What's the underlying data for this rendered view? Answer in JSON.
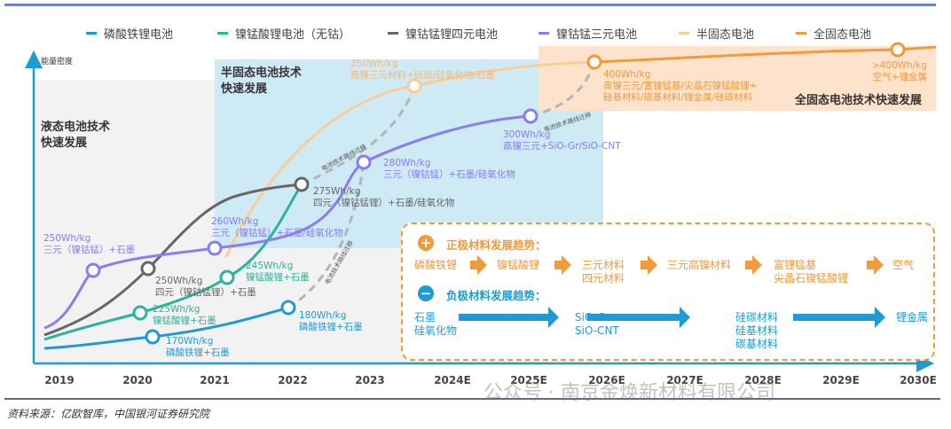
{
  "legend": [
    {
      "label": "磷酸铁锂电池",
      "color": "#1f9bd1"
    },
    {
      "label": "镍锰酸锂电池（无钴）",
      "color": "#2bb39b"
    },
    {
      "label": "镍钴锰锂四元电池",
      "color": "#666666"
    },
    {
      "label": "镍钴锰三元电池",
      "color": "#8b7cf0"
    },
    {
      "label": "半固态电池",
      "color": "#f9cd9a"
    },
    {
      "label": "全固态电池",
      "color": "#f39a3a"
    }
  ],
  "y_axis_label": "能量密度",
  "x_axis_years": [
    "2019",
    "2020",
    "2021",
    "2022",
    "2023",
    "2024E",
    "2025E",
    "2026E",
    "2027E",
    "2028E",
    "2029E",
    "2030E"
  ],
  "regions": {
    "liquid": "液态电池技术\n快速发展",
    "semi_solid": "半固态电池技术\n快速发展",
    "all_solid": "全固态电池技术快速发展"
  },
  "migration_label": "电池技术路线迁移",
  "nodes": [
    {
      "value": "250Wh/kg",
      "desc": "三元（镍钴锰）+石墨",
      "series": "ternary"
    },
    {
      "value": "250Wh/kg",
      "desc": "四元（镍钴锰锂）+石墨",
      "series": "quaternary"
    },
    {
      "value": "225Wh/kg",
      "desc": "镍锰酸锂+石墨",
      "series": "lmfp"
    },
    {
      "value": "170Wh/kg",
      "desc": "磷酸铁锂+石墨",
      "series": "lfp"
    },
    {
      "value": "260Wh/kg",
      "desc": "三元（镍钴锰）+石墨/硅氧化物",
      "series": "ternary"
    },
    {
      "value": "245Wh/kg",
      "desc": "镍锰酸锂+石墨",
      "series": "lmfp"
    },
    {
      "value": "275Wh/kg",
      "desc": "四元（镍钴锰锂）+石墨/硅氧化物",
      "series": "quaternary"
    },
    {
      "value": "180Wh/kg",
      "desc": "磷酸铁锂+石墨",
      "series": "lfp"
    },
    {
      "value": "280Wh/kg",
      "desc": "三元（镍钴锰）+石墨/硅氧化物",
      "series": "ternary"
    },
    {
      "value": "350Wh/kg",
      "desc": "高镍三元材料+硅碳/硅氧化物/石墨",
      "series": "semi"
    },
    {
      "value": "300Wh/kg",
      "desc": "高镍三元+SiO-Gr/SiO-CNT",
      "series": "ternary"
    },
    {
      "value": "400Wh/kg",
      "desc": "高镍三元/富锂锰基/尖晶石镍锰酸锂+\n硅基材料/碳基材料/锂金属/硅碳材料",
      "series": "solid"
    },
    {
      "value": ">400Wh/kg",
      "desc": "空气+锂金属",
      "series": "solid"
    }
  ],
  "cathode": {
    "title": "正极材料发展趋势：",
    "steps": [
      "磷酸铁锂",
      "镍锰酸锂",
      "三元材料\n四元材料",
      "三元高镍材料",
      "富锂锰基\n尖晶石镍锰酸锂",
      "空气"
    ]
  },
  "anode": {
    "title": "负极材料发展趋势：",
    "steps": [
      "石墨\n硅氧化物",
      "SiO-Gr\nSiO-CNT",
      "硅碳材料\n硅基材料\n碳基材料",
      "锂金属"
    ]
  },
  "watermark": "公众号 · 南京金焕新材料有限公司",
  "source": "资料来源：亿欧智库，中国银河证券研究院"
}
